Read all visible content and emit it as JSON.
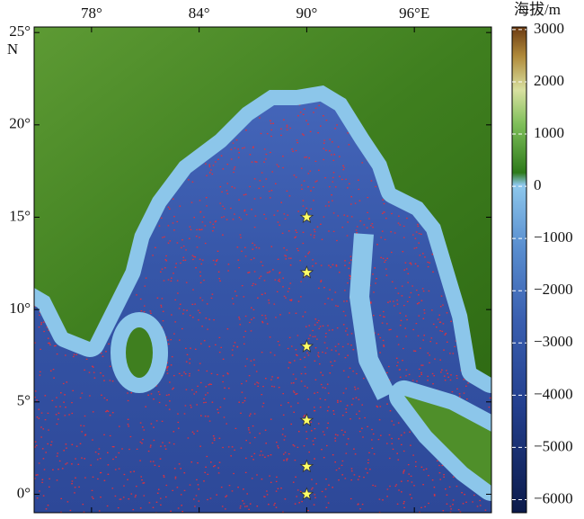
{
  "map": {
    "type": "map",
    "xlim": [
      74.8,
      100.3
    ],
    "ylim": [
      -1,
      25.3
    ],
    "xticks": [
      {
        "value": 78,
        "label": "78°"
      },
      {
        "value": 84,
        "label": "84°"
      },
      {
        "value": 90,
        "label": "90°"
      },
      {
        "value": 96,
        "label": "96°E"
      }
    ],
    "yticks": [
      {
        "value": 0,
        "label": "0°"
      },
      {
        "value": 5,
        "label": "5°"
      },
      {
        "value": 10,
        "label": "10°"
      },
      {
        "value": 15,
        "label": "15°"
      },
      {
        "value": 20,
        "label": "20°"
      },
      {
        "value": 25,
        "label": "25°"
      }
    ],
    "y_hemisphere_label": "N",
    "colorbar": {
      "title": "海拔/m",
      "lim": [
        -6250,
        3050
      ],
      "ticks": [
        3000,
        2000,
        1000,
        0,
        {
          "value": -1000,
          "label": "−1000"
        },
        {
          "value": -2000,
          "label": "−2000"
        },
        {
          "value": -3000,
          "label": "−3000"
        },
        {
          "value": -4000,
          "label": "−4000"
        },
        {
          "value": -5000,
          "label": "−5000"
        },
        {
          "value": -6000,
          "label": "−6000"
        }
      ]
    },
    "stations": [
      {
        "lon": 90,
        "lat": 15
      },
      {
        "lon": 90,
        "lat": 12
      },
      {
        "lon": 90,
        "lat": 8
      },
      {
        "lon": 90,
        "lat": 4
      },
      {
        "lon": 90,
        "lat": 1.5
      },
      {
        "lon": 90,
        "lat": 0
      }
    ]
  }
}
